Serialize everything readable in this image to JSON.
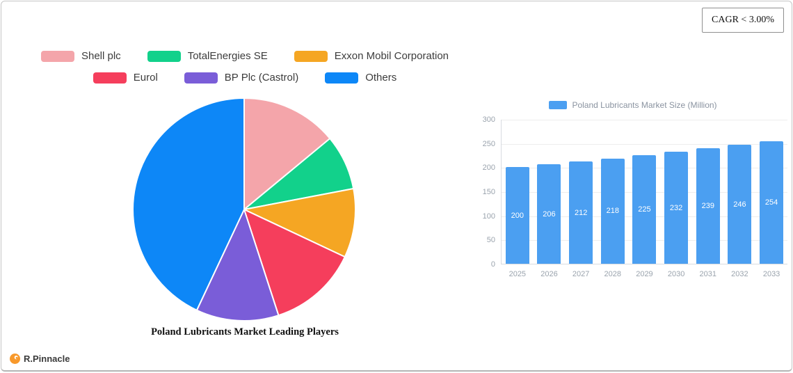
{
  "cagr_badge": "CAGR < 3.00%",
  "brand": {
    "name": "R.Pinnacle"
  },
  "chart_data": [
    {
      "type": "pie",
      "title": "Poland Lubricants Market Leading Players",
      "legend_position": "top",
      "slices": [
        {
          "label": "Shell plc",
          "value": 14,
          "color": "#f4a5aa"
        },
        {
          "label": "TotalEnergies SE",
          "value": 8,
          "color": "#12d18b"
        },
        {
          "label": "Exxon Mobil Corporation",
          "value": 10,
          "color": "#f5a623"
        },
        {
          "label": "Eurol",
          "value": 13,
          "color": "#f53e5c"
        },
        {
          "label": "BP Plc (Castrol)",
          "value": 12,
          "color": "#7a5dd8"
        },
        {
          "label": "Others",
          "value": 43,
          "color": "#0d87f7"
        }
      ]
    },
    {
      "type": "bar",
      "legend": "Poland Lubricants Market Size (Million)",
      "categories": [
        "2025",
        "2026",
        "2027",
        "2028",
        "2029",
        "2030",
        "2031",
        "2032",
        "2033"
      ],
      "values": [
        200,
        206,
        212,
        218,
        225,
        232,
        239,
        246,
        254
      ],
      "bar_color": "#4b9ff1",
      "ylim": [
        0,
        300
      ],
      "yticks": [
        0,
        50,
        100,
        150,
        200,
        250,
        300
      ],
      "grid": true,
      "legend_position": "top"
    }
  ]
}
